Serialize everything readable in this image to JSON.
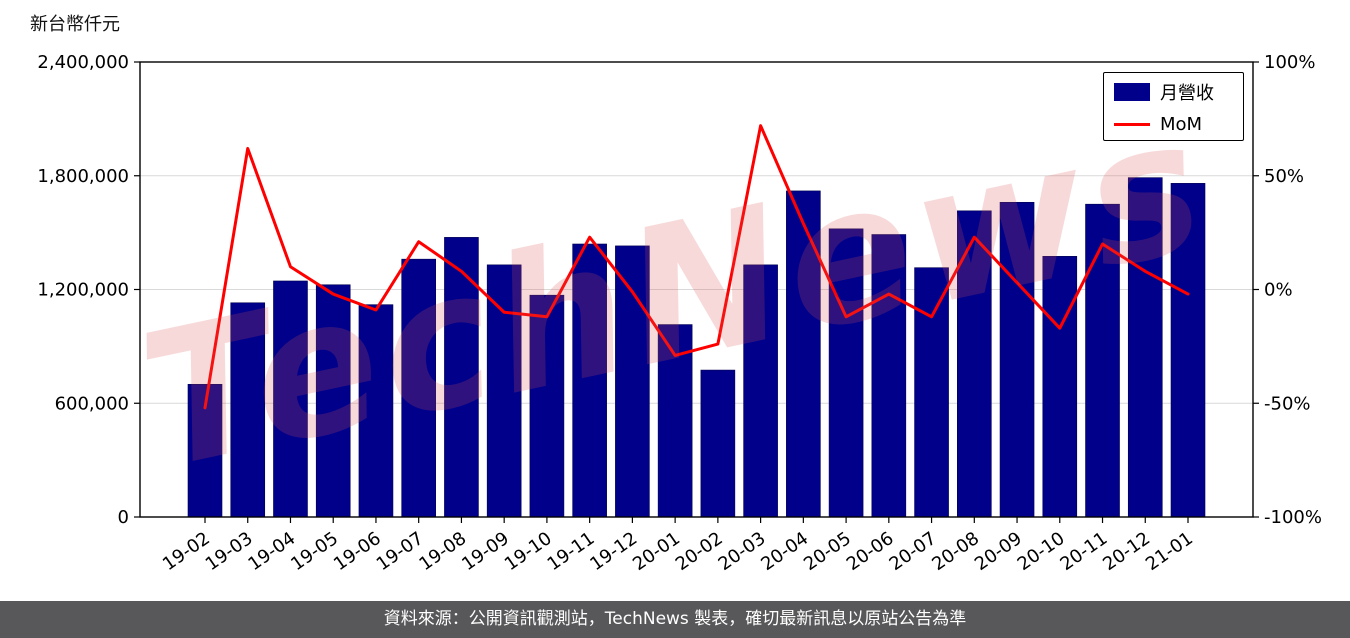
{
  "axis_unit_label": "新台幣仟元",
  "watermark": "TechNews",
  "footer": {
    "text": "資料來源：公開資訊觀測站，TechNews 製表，確切最新訊息以原站公告為準"
  },
  "colors": {
    "bar": "#00008b",
    "line": "#ff0000",
    "grid": "#d9d9d9",
    "frame": "#000000",
    "footer_bg": "#58585a",
    "watermark": "rgba(220,80,80,0.22)"
  },
  "chart_data": {
    "type": "bar",
    "title": "",
    "xlabel": "",
    "ylabel_left": "新台幣仟元",
    "ylabel_right": "%",
    "grid": true,
    "legend_position": "top-right",
    "categories": [
      "19-02",
      "19-03",
      "19-04",
      "19-05",
      "19-06",
      "19-07",
      "19-08",
      "19-09",
      "19-10",
      "19-11",
      "19-12",
      "20-01",
      "20-02",
      "20-03",
      "20-04",
      "20-05",
      "20-06",
      "20-07",
      "20-08",
      "20-09",
      "20-10",
      "20-11",
      "20-12",
      "21-01"
    ],
    "series": [
      {
        "name": "月營收",
        "type": "bar",
        "axis": "left",
        "color": "#00008b",
        "values": [
          700000,
          1130000,
          1245000,
          1225000,
          1120000,
          1360000,
          1475000,
          1330000,
          1170000,
          1440000,
          1430000,
          1015000,
          775000,
          1330000,
          1720000,
          1520000,
          1490000,
          1315000,
          1615000,
          1660000,
          1375000,
          1650000,
          1790000,
          1760000
        ]
      },
      {
        "name": "MoM",
        "type": "line",
        "axis": "right",
        "color": "#ff0000",
        "values": [
          -52,
          62,
          10,
          -2,
          -9,
          21,
          8,
          -10,
          -12,
          23,
          -1,
          -29,
          -24,
          72,
          29,
          -12,
          -2,
          -12,
          23,
          3,
          -17,
          20,
          8,
          -2
        ]
      }
    ],
    "left_axis": {
      "min": 0,
      "max": 2400000,
      "ticks": [
        0,
        600000,
        1200000,
        1800000,
        2400000
      ],
      "tick_labels": [
        "0",
        "600,000",
        "1,200,000",
        "1,800,000",
        "2,400,000"
      ]
    },
    "right_axis": {
      "min": -100,
      "max": 100,
      "ticks": [
        -100,
        -50,
        0,
        50,
        100
      ],
      "tick_labels": [
        "-100%",
        "-50%",
        "0%",
        "50%",
        "100%"
      ]
    }
  }
}
